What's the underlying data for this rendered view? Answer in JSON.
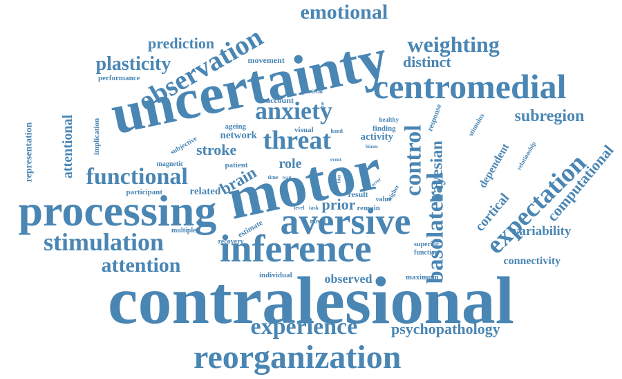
{
  "colors": {
    "word": "#4a86b4",
    "background": "#ffffff"
  },
  "words": [
    {
      "text": "contralesional",
      "vertical": false
    },
    {
      "text": "uncertainty",
      "vertical": false
    },
    {
      "text": "motor",
      "vertical": false
    },
    {
      "text": "processing",
      "vertical": false
    },
    {
      "text": "inference",
      "vertical": false
    },
    {
      "text": "aversive",
      "vertical": false
    },
    {
      "text": "reorganization",
      "vertical": false
    },
    {
      "text": "centromedial",
      "vertical": false
    },
    {
      "text": "expectation",
      "vertical": false
    },
    {
      "text": "basolateral",
      "vertical": true
    },
    {
      "text": "observation",
      "vertical": false
    },
    {
      "text": "experience",
      "vertical": false
    },
    {
      "text": "stimulation",
      "vertical": false
    },
    {
      "text": "emotional",
      "vertical": false
    },
    {
      "text": "weighting",
      "vertical": false
    },
    {
      "text": "anxiety",
      "vertical": false
    },
    {
      "text": "threat",
      "vertical": false
    },
    {
      "text": "functional",
      "vertical": false
    },
    {
      "text": "control",
      "vertical": true
    },
    {
      "text": "attention",
      "vertical": false
    },
    {
      "text": "plasticity",
      "vertical": false
    },
    {
      "text": "bayesian",
      "vertical": true
    },
    {
      "text": "computational",
      "vertical": false
    },
    {
      "text": "subregion",
      "vertical": false
    },
    {
      "text": "brain",
      "vertical": false
    },
    {
      "text": "psychopathology",
      "vertical": false
    },
    {
      "text": "attentional",
      "vertical": true
    },
    {
      "text": "prediction",
      "vertical": false
    },
    {
      "text": "variability",
      "vertical": false
    },
    {
      "text": "stroke",
      "vertical": false
    },
    {
      "text": "distinct",
      "vertical": false
    },
    {
      "text": "dependent",
      "vertical": false
    },
    {
      "text": "cortical",
      "vertical": false
    },
    {
      "text": "connectivity",
      "vertical": false
    },
    {
      "text": "observed",
      "vertical": false
    },
    {
      "text": "role",
      "vertical": false
    },
    {
      "text": "prior",
      "vertical": false
    },
    {
      "text": "representation",
      "vertical": true
    },
    {
      "text": "network",
      "vertical": false
    },
    {
      "text": "activity",
      "vertical": false
    },
    {
      "text": "related",
      "vertical": false
    },
    {
      "text": "movement",
      "vertical": false
    },
    {
      "text": "performance",
      "vertical": false
    },
    {
      "text": "account",
      "vertical": false
    },
    {
      "text": "visual",
      "vertical": false
    },
    {
      "text": "ageing",
      "vertical": false
    },
    {
      "text": "finding",
      "vertical": false
    },
    {
      "text": "response",
      "vertical": true
    },
    {
      "text": "stimulus",
      "vertical": false
    },
    {
      "text": "relationship",
      "vertical": false
    },
    {
      "text": "subjective",
      "vertical": false
    },
    {
      "text": "implication",
      "vertical": true
    },
    {
      "text": "magnetic",
      "vertical": false
    },
    {
      "text": "patient",
      "vertical": false
    },
    {
      "text": "participant",
      "vertical": false
    },
    {
      "text": "result",
      "vertical": false
    },
    {
      "text": "remain",
      "vertical": false
    },
    {
      "text": "value",
      "vertical": false
    },
    {
      "text": "higher",
      "vertical": false
    },
    {
      "text": "estimate",
      "vertical": false
    },
    {
      "text": "novel",
      "vertical": false
    },
    {
      "text": "level",
      "vertical": false
    },
    {
      "text": "task",
      "vertical": false
    },
    {
      "text": "multiple",
      "vertical": false
    },
    {
      "text": "recovery",
      "vertical": false
    },
    {
      "text": "individual",
      "vertical": false
    },
    {
      "text": "maximum",
      "vertical": false
    },
    {
      "text": "superior",
      "vertical": false
    },
    {
      "text": "function",
      "vertical": false
    },
    {
      "text": "parietal",
      "vertical": false
    },
    {
      "text": "healthy",
      "vertical": false
    },
    {
      "text": "hand",
      "vertical": false
    },
    {
      "text": "biases",
      "vertical": false
    },
    {
      "text": "time",
      "vertical": false
    },
    {
      "text": "trait",
      "vertical": false
    },
    {
      "text": "event",
      "vertical": false
    },
    {
      "text": "bias",
      "vertical": true
    },
    {
      "text": "error",
      "vertical": false
    },
    {
      "text": "cue",
      "vertical": true
    }
  ]
}
